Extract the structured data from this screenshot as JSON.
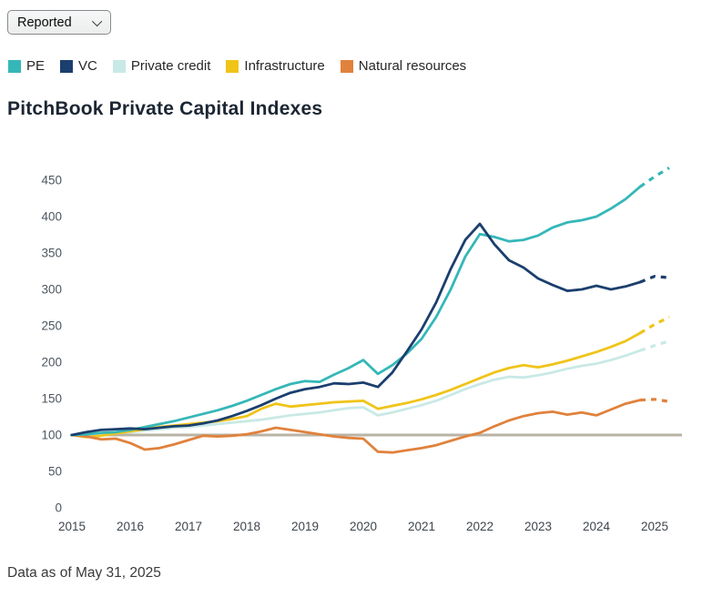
{
  "controls": {
    "dropdown": {
      "value": "Reported"
    }
  },
  "title": "PitchBook Private Capital Indexes",
  "footer": "Data as of May 31, 2025",
  "chart_data": {
    "type": "line",
    "title": "PitchBook Private Capital Indexes",
    "xlabel": "",
    "ylabel": "",
    "x_start": 2015,
    "x_step": 0.25,
    "x_ticks": [
      2015,
      2016,
      2017,
      2018,
      2019,
      2020,
      2021,
      2022,
      2023,
      2024,
      2025
    ],
    "y_ticks": [
      0,
      50,
      100,
      150,
      200,
      250,
      300,
      350,
      400,
      450
    ],
    "ylim": [
      0,
      470
    ],
    "grid": false,
    "legend_position": "top",
    "note": "dashed tail = preliminary data",
    "dashed_from_index": 39,
    "baseline": {
      "value": 100,
      "color": "#b9b3a6"
    },
    "series": [
      {
        "name": "Private credit",
        "id": "private-credit",
        "color": "#c9e9e6",
        "values": [
          100,
          101,
          102,
          103,
          104,
          106,
          108,
          110,
          111,
          113,
          115,
          117,
          119,
          121,
          124,
          127,
          129,
          131,
          134,
          137,
          138,
          127,
          131,
          136,
          141,
          147,
          155,
          163,
          170,
          176,
          180,
          179,
          182,
          186,
          191,
          195,
          198,
          203,
          209,
          216,
          223,
          229
        ]
      },
      {
        "name": "Infrastructure",
        "id": "infrastructure",
        "color": "#f0c419",
        "values": [
          100,
          97,
          99,
          102,
          105,
          108,
          111,
          113,
          115,
          117,
          119,
          122,
          126,
          136,
          143,
          139,
          141,
          143,
          145,
          146,
          147,
          136,
          140,
          144,
          149,
          155,
          162,
          170,
          178,
          186,
          192,
          196,
          193,
          197,
          202,
          208,
          214,
          221,
          229,
          240,
          252,
          262
        ]
      },
      {
        "name": "Natural resources",
        "id": "natural-resources",
        "color": "#e0823c",
        "values": [
          100,
          98,
          94,
          95,
          89,
          80,
          82,
          87,
          93,
          99,
          98,
          99,
          101,
          105,
          110,
          107,
          104,
          101,
          98,
          96,
          95,
          77,
          76,
          79,
          82,
          86,
          92,
          98,
          103,
          112,
          120,
          126,
          130,
          132,
          128,
          131,
          127,
          135,
          143,
          148,
          149,
          146
        ]
      },
      {
        "name": "PE",
        "id": "pe",
        "color": "#35b7b8",
        "values": [
          100,
          101,
          103,
          104,
          107,
          111,
          115,
          119,
          124,
          129,
          134,
          140,
          147,
          155,
          163,
          170,
          174,
          173,
          183,
          192,
          203,
          184,
          196,
          212,
          232,
          262,
          300,
          345,
          376,
          372,
          366,
          368,
          374,
          385,
          392,
          395,
          400,
          411,
          424,
          441,
          455,
          467
        ]
      },
      {
        "name": "VC",
        "id": "vc",
        "color": "#1b3f6e",
        "values": [
          100,
          104,
          107,
          108,
          109,
          108,
          110,
          112,
          113,
          116,
          120,
          126,
          133,
          141,
          150,
          158,
          163,
          166,
          171,
          170,
          172,
          166,
          186,
          215,
          245,
          282,
          328,
          368,
          390,
          362,
          340,
          330,
          315,
          306,
          298,
          300,
          305,
          300,
          304,
          310,
          318,
          316
        ]
      }
    ],
    "legend_order": [
      "pe",
      "vc",
      "private-credit",
      "infrastructure",
      "natural-resources"
    ]
  }
}
